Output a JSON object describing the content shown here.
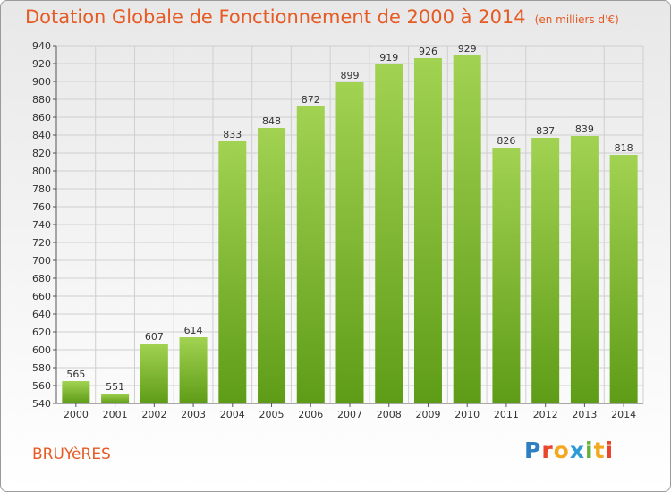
{
  "title": "Dotation Globale de Fonctionnement de 2000 à 2014",
  "subtitle": "(en milliers d'€)",
  "commune": "BRUYèRES",
  "logo": {
    "letters": [
      "P",
      "r",
      "o",
      "x",
      "i",
      "t",
      "i"
    ],
    "colors": [
      "#2d7fc1",
      "#e8452c",
      "#f4a822",
      "#2e9ad6",
      "#63b23a",
      "#f4a822",
      "#e8452c"
    ]
  },
  "colors": {
    "bar_top": "#a2d252",
    "bar_bottom": "#5e9c17",
    "title": "#e65a24",
    "grid": "#cfcfcf"
  },
  "chart_data": {
    "type": "bar",
    "title": "Dotation Globale de Fonctionnement de 2000 à 2014",
    "subtitle": "(en milliers d'€)",
    "categories": [
      "2000",
      "2001",
      "2002",
      "2003",
      "2004",
      "2005",
      "2006",
      "2007",
      "2008",
      "2009",
      "2010",
      "2011",
      "2012",
      "2013",
      "2014"
    ],
    "values": [
      565,
      551,
      607,
      614,
      833,
      848,
      872,
      899,
      919,
      926,
      929,
      826,
      837,
      839,
      818
    ],
    "ylim": [
      540,
      940
    ],
    "ytick_step": 20,
    "xlabel": "",
    "ylabel": "",
    "grid": true,
    "data_labels": true
  }
}
